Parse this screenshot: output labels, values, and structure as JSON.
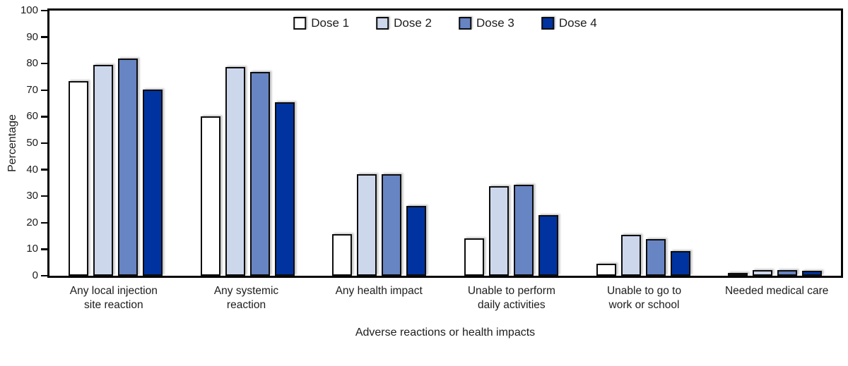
{
  "chart_data": {
    "type": "bar",
    "title": "",
    "xlabel": "Adverse reactions or health impacts",
    "ylabel": "Percentage",
    "ylim": [
      0,
      100
    ],
    "ytick_step": 10,
    "grid": false,
    "legend_position": "top-center",
    "categories": [
      "Any local injection\nsite reaction",
      "Any systemic\nreaction",
      "Any health impact",
      "Unable to perform\ndaily activities",
      "Unable to go to\nwork or school",
      "Needed medical care"
    ],
    "series": [
      {
        "name": "Dose 1",
        "color": "#ffffff",
        "values": [
          73.5,
          60.1,
          15.8,
          14.0,
          4.6,
          1.1
        ]
      },
      {
        "name": "Dose 2",
        "color": "#ccd7ec",
        "values": [
          79.6,
          78.6,
          38.4,
          33.9,
          15.3,
          2.0
        ]
      },
      {
        "name": "Dose 3",
        "color": "#6784c3",
        "values": [
          81.8,
          76.9,
          38.2,
          34.3,
          13.8,
          2.0
        ]
      },
      {
        "name": "Dose 4",
        "color": "#0033a0",
        "values": [
          70.3,
          65.5,
          26.4,
          22.9,
          9.2,
          1.8
        ]
      }
    ],
    "colors": {
      "bar_border": "#0d0d0d",
      "axis": "#050505",
      "text": "#1c1c1c"
    }
  }
}
